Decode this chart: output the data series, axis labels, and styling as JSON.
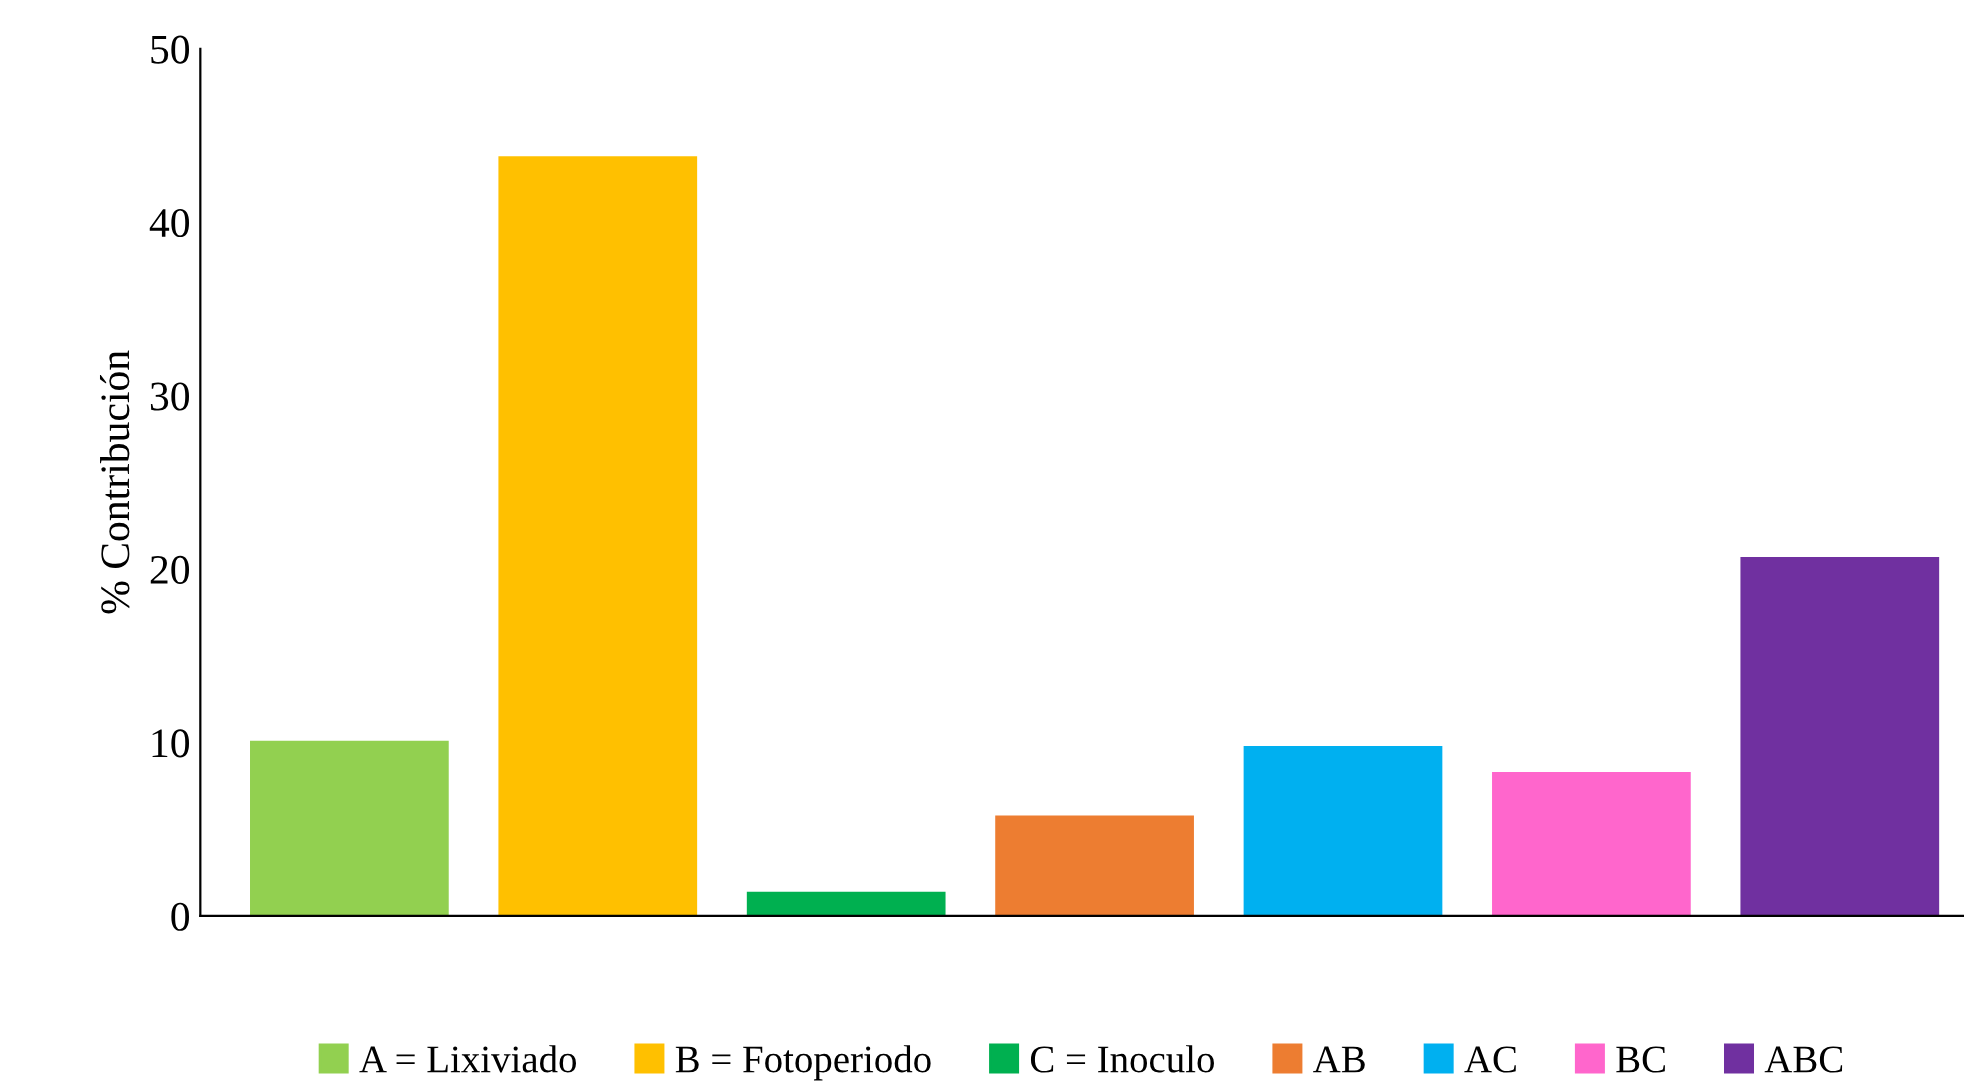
{
  "chart_data": {
    "type": "bar",
    "ylabel": "% Contribución",
    "categories": [
      null,
      null,
      null,
      null,
      null,
      null,
      null
    ],
    "series": [
      {
        "name": "A = Lixiviado",
        "color": "#92d050",
        "values": [
          10.1,
          null,
          null,
          null,
          null,
          null,
          null
        ]
      },
      {
        "name": "B = Fotoperiodo",
        "color": "#ffc000",
        "values": [
          null,
          43.8,
          null,
          null,
          null,
          null,
          null
        ]
      },
      {
        "name": "C = Inoculo",
        "color": "#00b050",
        "values": [
          null,
          null,
          1.4,
          null,
          null,
          null,
          null
        ]
      },
      {
        "name": "AB",
        "color": "#ed7d31",
        "values": [
          null,
          null,
          null,
          5.8,
          null,
          null,
          null
        ]
      },
      {
        "name": "AC",
        "color": "#00b0f0",
        "values": [
          null,
          null,
          null,
          null,
          9.8,
          null,
          null
        ]
      },
      {
        "name": "BC",
        "color": "#ff66cc",
        "values": [
          null,
          null,
          null,
          null,
          null,
          8.3,
          null
        ]
      },
      {
        "name": "ABC",
        "color": "#7030a0",
        "values": [
          null,
          null,
          null,
          null,
          null,
          null,
          20.7
        ]
      }
    ],
    "ylim": [
      0,
      50
    ],
    "yticks": [
      0,
      10,
      20,
      30,
      40,
      50
    ],
    "grid": false,
    "legend": "bottom"
  }
}
